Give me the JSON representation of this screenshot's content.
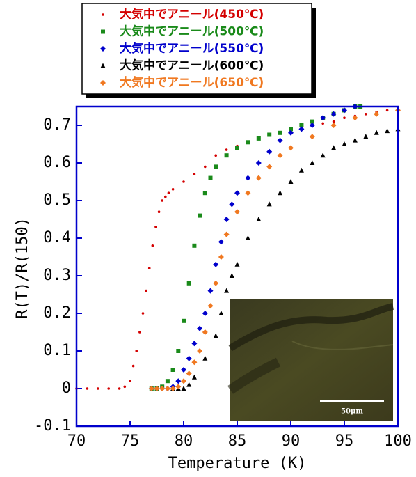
{
  "chart_data": {
    "type": "scatter",
    "xlabel": "Temperature (K)",
    "ylabel": "R(T)/R(150)",
    "xlim": [
      70,
      100
    ],
    "ylim": [
      -0.1,
      0.75
    ],
    "xticks": [
      70,
      75,
      80,
      85,
      90,
      95,
      100
    ],
    "yticks": [
      -0.1,
      0,
      0.1,
      0.2,
      0.3,
      0.4,
      0.5,
      0.6,
      0.7
    ],
    "annotations": [
      "50μm"
    ],
    "series": [
      {
        "name": "大気中でアニール(450℃)",
        "color": "#d40000",
        "marker": "dot",
        "x": [
          70,
          71,
          72,
          73,
          74,
          74.5,
          75,
          75.3,
          75.6,
          75.9,
          76.2,
          76.5,
          76.8,
          77.1,
          77.4,
          77.7,
          78,
          78.3,
          78.6,
          79,
          80,
          81,
          82,
          83,
          84,
          85,
          86,
          87,
          88,
          89,
          90,
          91,
          92,
          93,
          94,
          95,
          96,
          97,
          98,
          99,
          100
        ],
        "values": [
          0,
          0,
          0,
          0,
          0,
          0.005,
          0.02,
          0.06,
          0.1,
          0.15,
          0.2,
          0.26,
          0.32,
          0.38,
          0.43,
          0.47,
          0.5,
          0.51,
          0.52,
          0.53,
          0.55,
          0.57,
          0.59,
          0.62,
          0.635,
          0.645,
          0.655,
          0.665,
          0.675,
          0.68,
          0.685,
          0.69,
          0.7,
          0.705,
          0.71,
          0.72,
          0.725,
          0.73,
          0.735,
          0.74,
          0.745
        ]
      },
      {
        "name": "大気中でアニール(500℃)",
        "color": "#1a8a1a",
        "marker": "square",
        "x": [
          77,
          77.5,
          78,
          78.5,
          79,
          79.5,
          80,
          80.5,
          81,
          81.5,
          82,
          82.5,
          83,
          84,
          85,
          86,
          87,
          88,
          89,
          90,
          91,
          92,
          93,
          94,
          95,
          96,
          96.5
        ],
        "values": [
          0,
          0,
          0.005,
          0.02,
          0.05,
          0.1,
          0.18,
          0.28,
          0.38,
          0.46,
          0.52,
          0.56,
          0.59,
          0.62,
          0.64,
          0.655,
          0.665,
          0.675,
          0.68,
          0.69,
          0.7,
          0.71,
          0.72,
          0.73,
          0.74,
          0.75,
          0.75
        ]
      },
      {
        "name": "大気中でアニール(550℃)",
        "color": "#0000cc",
        "marker": "diamond",
        "x": [
          77,
          77.5,
          78,
          78.5,
          79,
          79.5,
          80,
          80.5,
          81,
          81.5,
          82,
          82.5,
          83,
          83.5,
          84,
          84.5,
          85,
          86,
          87,
          88,
          89,
          90,
          91,
          92,
          93,
          94,
          95,
          96
        ],
        "values": [
          0,
          0,
          0,
          0,
          0.005,
          0.02,
          0.05,
          0.08,
          0.12,
          0.16,
          0.2,
          0.26,
          0.33,
          0.39,
          0.45,
          0.49,
          0.52,
          0.56,
          0.6,
          0.63,
          0.66,
          0.68,
          0.69,
          0.7,
          0.72,
          0.73,
          0.74,
          0.75
        ]
      },
      {
        "name": "大気中でアニール(600℃)",
        "color": "#000000",
        "marker": "triangle",
        "x": [
          79,
          79.5,
          80,
          80.5,
          81,
          82,
          83,
          83.5,
          84,
          84.5,
          85,
          86,
          87,
          88,
          89,
          90,
          91,
          92,
          93,
          94,
          95,
          96,
          97,
          98,
          99,
          100
        ],
        "values": [
          0,
          0,
          0,
          0.01,
          0.03,
          0.08,
          0.14,
          0.2,
          0.26,
          0.3,
          0.33,
          0.4,
          0.45,
          0.49,
          0.52,
          0.55,
          0.58,
          0.6,
          0.62,
          0.64,
          0.65,
          0.66,
          0.67,
          0.68,
          0.685,
          0.69
        ]
      },
      {
        "name": "大気中でアニール(650℃)",
        "color": "#f07820",
        "marker": "diamond",
        "x": [
          77,
          77.5,
          78,
          78.5,
          79,
          79.5,
          80,
          80.5,
          81,
          81.5,
          82,
          82.5,
          83,
          83.5,
          84,
          85,
          86,
          87,
          88,
          89,
          90,
          92,
          94,
          96,
          98,
          100
        ],
        "values": [
          0,
          0,
          0,
          0,
          0,
          0.005,
          0.02,
          0.04,
          0.07,
          0.1,
          0.15,
          0.22,
          0.28,
          0.35,
          0.41,
          0.47,
          0.52,
          0.56,
          0.59,
          0.62,
          0.64,
          0.67,
          0.7,
          0.72,
          0.73,
          0.74
        ]
      }
    ]
  }
}
